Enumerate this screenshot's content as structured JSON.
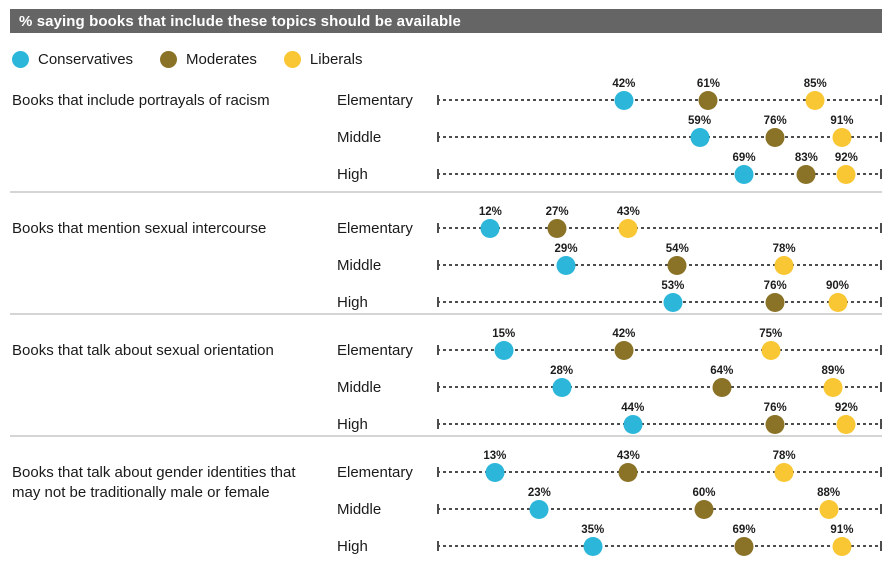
{
  "header": {
    "title": "% saying books that include these topics should be available"
  },
  "legend": [
    {
      "label": "Conservatives",
      "color": "#2cb7da"
    },
    {
      "label": "Moderates",
      "color": "#8a7327"
    },
    {
      "label": "Liberals",
      "color": "#f9c733"
    }
  ],
  "chart_data": {
    "type": "scatter",
    "subtype": "dot-plot",
    "title": "% saying books that include these topics should be available",
    "unit": "%",
    "x_range": [
      0,
      100
    ],
    "grid": "dashed-row-lines",
    "legend_position": "top-left",
    "series_names": [
      "Conservatives",
      "Moderates",
      "Liberals"
    ],
    "series_colors": [
      "#2cb7da",
      "#8a7327",
      "#f9c733"
    ],
    "row_categories": [
      "Elementary",
      "Middle",
      "High"
    ],
    "groups": [
      {
        "topic": "Books that include portrayals of racism",
        "rows": [
          {
            "level": "Elementary",
            "values": [
              42,
              61,
              85
            ]
          },
          {
            "level": "Middle",
            "values": [
              59,
              76,
              91
            ]
          },
          {
            "level": "High",
            "values": [
              69,
              83,
              92
            ]
          }
        ]
      },
      {
        "topic": "Books that mention sexual intercourse",
        "rows": [
          {
            "level": "Elementary",
            "values": [
              12,
              27,
              43
            ]
          },
          {
            "level": "Middle",
            "values": [
              29,
              54,
              78
            ]
          },
          {
            "level": "High",
            "values": [
              53,
              76,
              90
            ]
          }
        ]
      },
      {
        "topic": "Books that talk about sexual orientation",
        "rows": [
          {
            "level": "Elementary",
            "values": [
              15,
              42,
              75
            ]
          },
          {
            "level": "Middle",
            "values": [
              28,
              64,
              89
            ]
          },
          {
            "level": "High",
            "values": [
              44,
              76,
              92
            ]
          }
        ]
      },
      {
        "topic": "Books that talk about gender identities that may not be traditionally male or female",
        "rows": [
          {
            "level": "Elementary",
            "values": [
              13,
              43,
              78
            ]
          },
          {
            "level": "Middle",
            "values": [
              23,
              60,
              88
            ]
          },
          {
            "level": "High",
            "values": [
              35,
              69,
              91
            ]
          }
        ]
      }
    ]
  }
}
